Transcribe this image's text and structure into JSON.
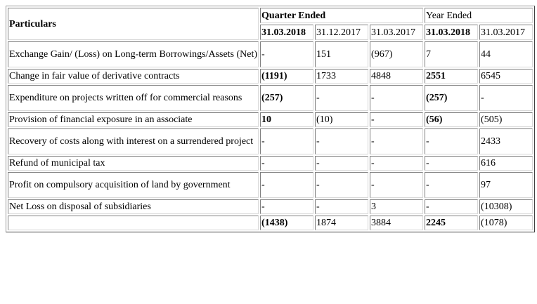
{
  "header": {
    "particulars": "Particulars",
    "quarter_ended": "Quarter Ended",
    "year_ended": "Year Ended",
    "dates": [
      "31.03.2018",
      "31.12.2017",
      "31.03.2017",
      "31.03.2018",
      "31.03.2017"
    ]
  },
  "rows": [
    {
      "label": "Exchange Gain/ (Loss) on Long-term Borrowings/Assets (Net)",
      "values": [
        "-",
        "151",
        "(967)",
        "7",
        "44"
      ]
    },
    {
      "label": "Change in fair value of derivative contracts",
      "values": [
        "(1191)",
        "1733",
        "4848",
        "2551",
        "6545"
      ]
    },
    {
      "label": "Expenditure on projects written off for commercial reasons",
      "values": [
        "(257)",
        "-",
        "-",
        "(257)",
        "-"
      ]
    },
    {
      "label": "Provision of financial exposure in an associate",
      "values": [
        "10",
        "(10)",
        "-",
        "(56)",
        "(505)"
      ]
    },
    {
      "label": "Recovery of costs along with interest on a surrendered project",
      "values": [
        "-",
        "-",
        "-",
        "-",
        "2433"
      ]
    },
    {
      "label": "Refund of municipal tax",
      "values": [
        "-",
        "-",
        "-",
        "-",
        "616"
      ]
    },
    {
      "label": "Profit on compulsory acquisition of land by government",
      "values": [
        "-",
        "-",
        "-",
        "-",
        "97"
      ]
    },
    {
      "label": "Net Loss on disposal of subsidiaries",
      "values": [
        "-",
        "-",
        "3",
        "-",
        "(10308)"
      ]
    }
  ],
  "total": {
    "label": "",
    "values": [
      "(1438)",
      "1874",
      "3884",
      "2245",
      "(1078)"
    ]
  }
}
